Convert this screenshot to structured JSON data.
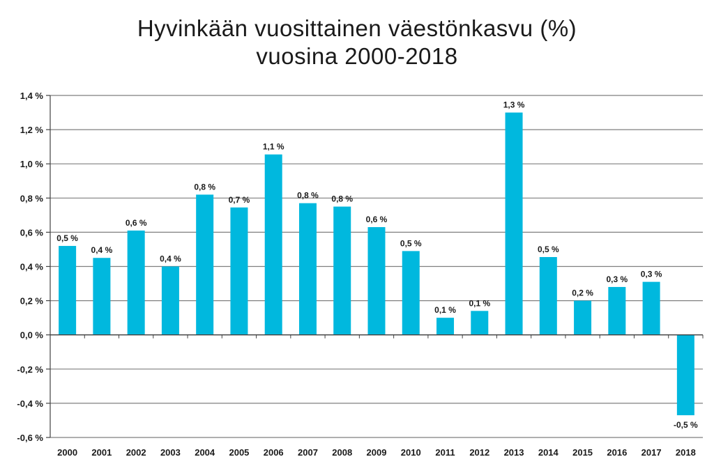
{
  "chart_data": {
    "type": "bar",
    "title_line1": "Hyvinkään vuosittainen väestönkasvu (%)",
    "title_line2": "vuosina 2000-2018",
    "xlabel": "",
    "ylabel": "",
    "categories": [
      "2000",
      "2001",
      "2002",
      "2003",
      "2004",
      "2005",
      "2006",
      "2007",
      "2008",
      "2009",
      "2010",
      "2011",
      "2012",
      "2013",
      "2014",
      "2015",
      "2016",
      "2017",
      "2018"
    ],
    "values": [
      0.52,
      0.45,
      0.61,
      0.4,
      0.82,
      0.745,
      1.055,
      0.77,
      0.75,
      0.63,
      0.49,
      0.1,
      0.14,
      1.3,
      0.455,
      0.2,
      0.28,
      0.31,
      -0.47
    ],
    "data_labels": [
      "0,5 %",
      "0,4 %",
      "0,6 %",
      "0,4 %",
      "0,8 %",
      "0,7 %",
      "1,1 %",
      "0,8 %",
      "0,8 %",
      "0,6 %",
      "0,5 %",
      "0,1 %",
      "0,1 %",
      "1,3 %",
      "0,5 %",
      "0,2 %",
      "0,3 %",
      "0,3 %",
      "-0,5 %"
    ],
    "ylim": [
      -0.6,
      1.4
    ],
    "yticks": [
      1.4,
      1.2,
      1.0,
      0.8,
      0.6,
      0.4,
      0.2,
      0.0,
      -0.2,
      -0.4,
      -0.6
    ],
    "ytick_labels": [
      "1,4 %",
      "1,2 %",
      "1,0 %",
      "0,8 %",
      "0,6 %",
      "0,4 %",
      "0,2 %",
      "0,0 %",
      "-0,2 %",
      "-0,4 %",
      "-0,6 %"
    ],
    "grid": true,
    "legend": "none",
    "bar_color": "#00b8de",
    "grid_color": "#7f7f7f"
  }
}
